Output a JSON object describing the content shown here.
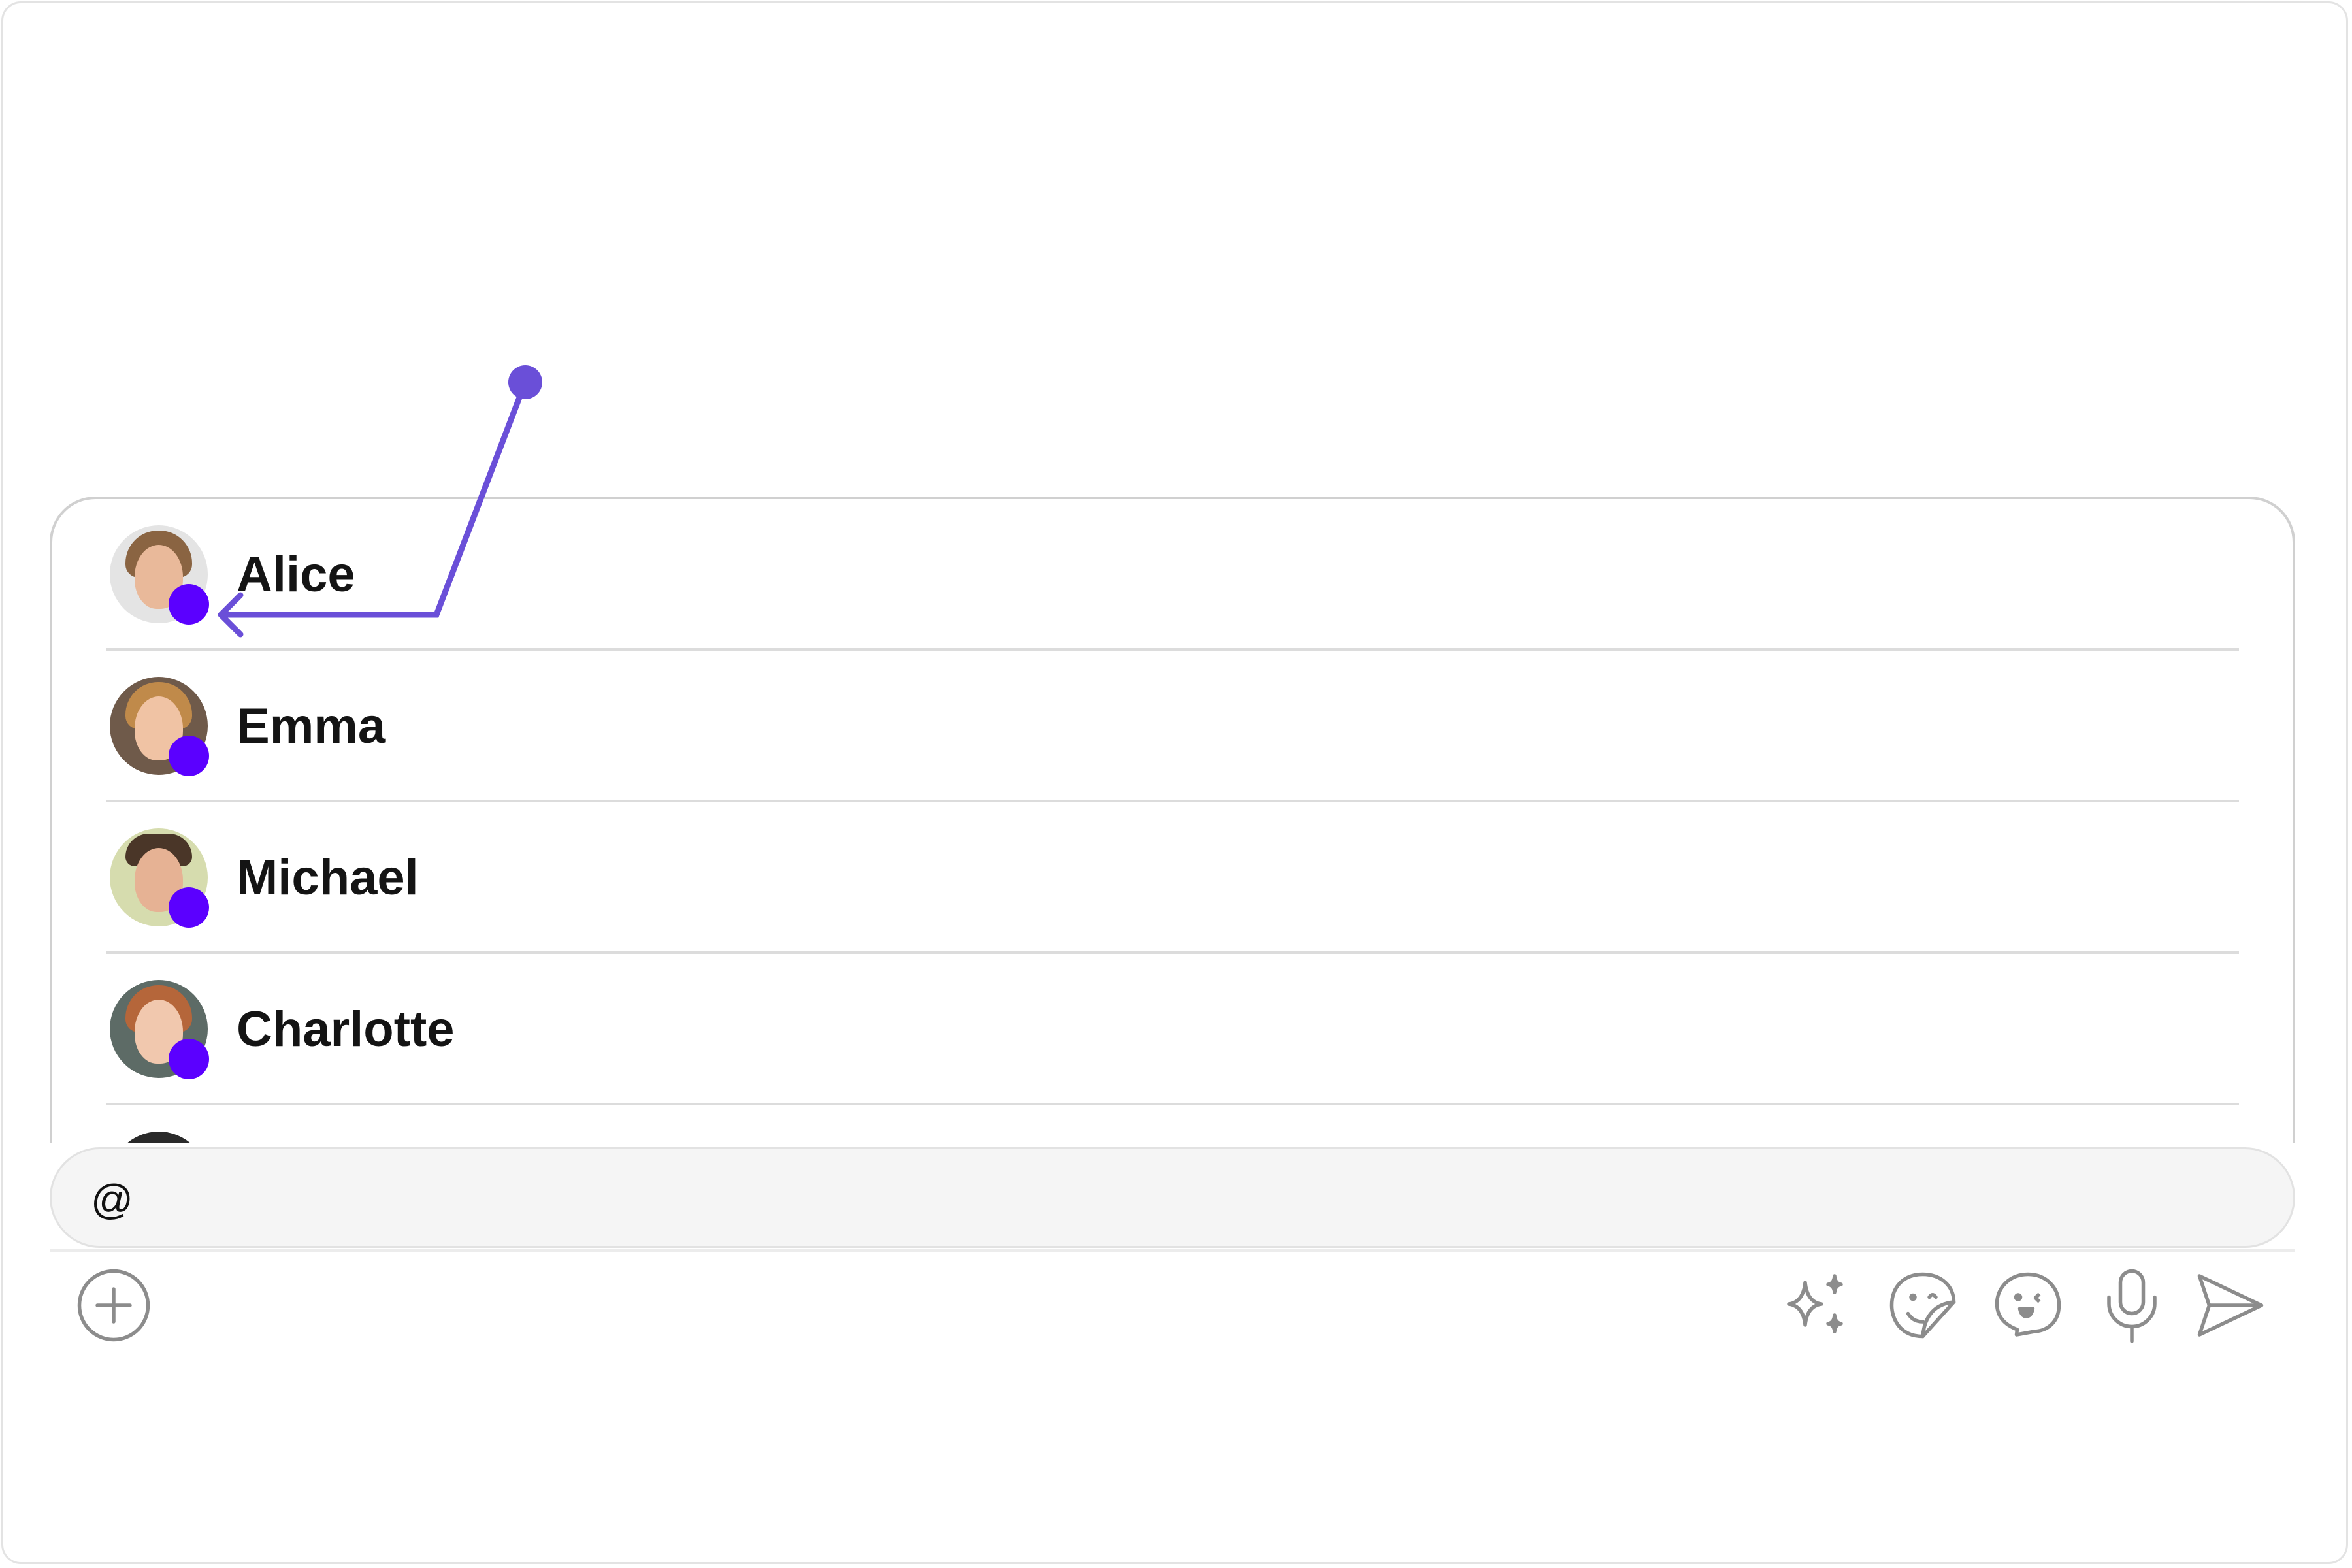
{
  "mention_list": {
    "items": [
      {
        "name": "Alice",
        "online": true
      },
      {
        "name": "Emma",
        "online": true
      },
      {
        "name": "Michael",
        "online": true
      },
      {
        "name": "Charlotte",
        "online": true
      },
      {
        "name": "",
        "online": false
      }
    ]
  },
  "composer": {
    "value": "@"
  },
  "toolbar": {
    "icons": [
      "plus-circle-icon",
      "sparkles-icon",
      "sticker-icon",
      "emoji-chat-icon",
      "microphone-icon",
      "send-icon"
    ],
    "icon_color": "#8c8c8c"
  },
  "colors": {
    "status_dot": "#5b00ff",
    "annotation": "#6a4fd8"
  }
}
